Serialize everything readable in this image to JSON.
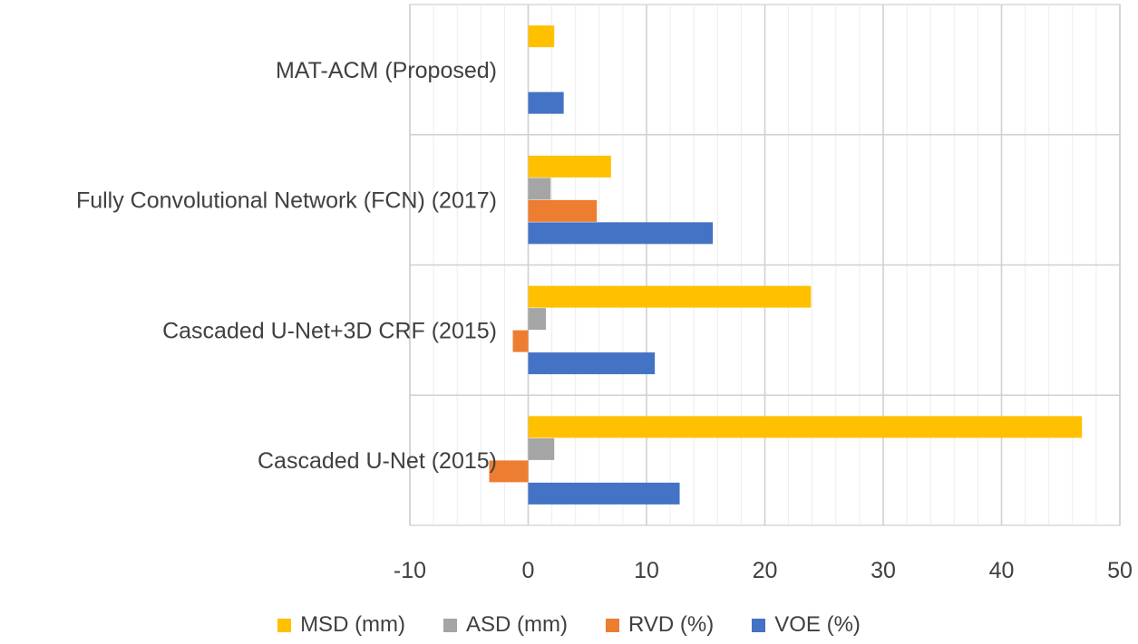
{
  "chart_data": {
    "type": "bar",
    "orientation": "horizontal",
    "title": "",
    "xlabel": "",
    "ylabel": "",
    "xlim": [
      -10,
      50
    ],
    "x_ticks": [
      "-10",
      "0",
      "10",
      "20",
      "30",
      "40",
      "50"
    ],
    "grid": true,
    "legend_position": "bottom",
    "categories": [
      "MAT-ACM (Proposed)",
      "Fully Convolutional Network (FCN) (2017)",
      "Cascaded U-Net+3D CRF (2015)",
      "Cascaded U-Net (2015)"
    ],
    "series": [
      {
        "name": "MSD (mm)",
        "color": "#FFC000",
        "values": [
          2.2,
          7.0,
          23.9,
          46.8
        ]
      },
      {
        "name": "ASD (mm)",
        "color": "#A5A5A5",
        "values": [
          0.0,
          1.9,
          1.5,
          2.2
        ]
      },
      {
        "name": "RVD (%)",
        "color": "#ED7D31",
        "values": [
          0.0,
          5.8,
          -1.3,
          -3.3
        ]
      },
      {
        "name": "VOE (%)",
        "color": "#4472C4",
        "values": [
          3.0,
          15.6,
          10.7,
          12.8
        ]
      }
    ]
  }
}
